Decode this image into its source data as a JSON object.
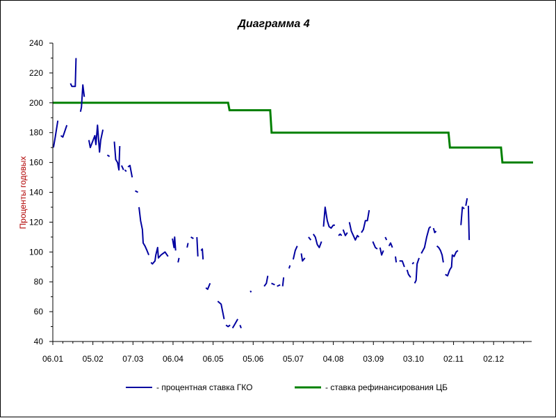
{
  "chart_data": {
    "type": "line",
    "title": "Диаграмма 4",
    "xlabel": "",
    "ylabel": "Проценты годовых",
    "ylim": [
      40,
      240
    ],
    "yticks": [
      40,
      60,
      80,
      100,
      120,
      140,
      160,
      180,
      200,
      220,
      240
    ],
    "x_ticks": [
      "06.01",
      "05.02",
      "07.03",
      "06.04",
      "06.05",
      "05.06",
      "05.07",
      "04.08",
      "03.09",
      "03.10",
      "02.11",
      "02.12"
    ],
    "x_index_range": [
      0,
      239
    ],
    "x_tick_indices": [
      0,
      20,
      40,
      60,
      80,
      100,
      120,
      140,
      160,
      180,
      200,
      220
    ],
    "grid": false,
    "legend_position": "bottom",
    "series": [
      {
        "name": "- процентная ставка ГКО",
        "color": "#0000a0",
        "segments": [
          [
            [
              0.3,
              170
            ],
            [
              1.2,
              177
            ],
            [
              2.5,
              188
            ]
          ],
          [
            [
              4,
              178
            ],
            [
              5,
              177
            ],
            [
              7,
              185
            ]
          ],
          [
            [
              8.8,
              213
            ],
            [
              9.5,
              211
            ],
            [
              11.2,
              211
            ],
            [
              11.6,
              230
            ]
          ],
          [
            [
              13.8,
              194
            ],
            [
              14.3,
              197
            ],
            [
              15,
              212
            ],
            [
              15.7,
              204
            ]
          ],
          [
            [
              18,
              175
            ],
            [
              18.7,
              170
            ],
            [
              21,
              178
            ],
            [
              21.5,
              172
            ],
            [
              22.3,
              185
            ],
            [
              23.3,
              167
            ],
            [
              23.9,
              175
            ],
            [
              25,
              182
            ]
          ],
          [
            [
              27.2,
              165
            ],
            [
              28.3,
              164
            ]
          ],
          [
            [
              30.7,
              174
            ],
            [
              31.4,
              162
            ],
            [
              32.3,
              160
            ],
            [
              33,
              155
            ],
            [
              33.4,
              171
            ]
          ],
          [
            [
              34.3,
              158
            ],
            [
              35.3,
              155
            ]
          ],
          [
            [
              35.9,
              155
            ],
            [
              36.7,
              154
            ]
          ],
          [
            [
              37.5,
              157
            ],
            [
              38.5,
              158
            ],
            [
              39.6,
              150
            ]
          ],
          [
            [
              41.1,
              141
            ],
            [
              42.5,
              140
            ]
          ],
          [
            [
              43,
              130
            ],
            [
              43.8,
              121
            ],
            [
              44.7,
              115
            ],
            [
              45.1,
              106
            ],
            [
              46,
              104
            ],
            [
              47,
              101
            ],
            [
              47.9,
              98
            ]
          ],
          [
            [
              49,
              93
            ],
            [
              49.7,
              92
            ],
            [
              51,
              94
            ],
            [
              51.4,
              98
            ],
            [
              52.3,
              103
            ],
            [
              52.7,
              96
            ],
            [
              54,
              98
            ],
            [
              55,
              99
            ],
            [
              56,
              100
            ],
            [
              57.5,
              97
            ]
          ],
          [
            [
              59.7,
              109
            ],
            [
              60.5,
              103
            ],
            [
              60.8,
              110
            ],
            [
              61.3,
              101
            ]
          ],
          [
            [
              62.5,
              93
            ],
            [
              63,
              96
            ]
          ],
          [
            [
              67,
              103
            ],
            [
              67.5,
              106
            ]
          ],
          [
            [
              68.9,
              110
            ],
            [
              70.2,
              109
            ]
          ],
          [
            [
              71.9,
              110
            ],
            [
              72.4,
              97
            ]
          ],
          [
            [
              74,
              101
            ],
            [
              74.6,
              102
            ],
            [
              75,
              95
            ]
          ],
          [
            [
              76.4,
              76
            ],
            [
              77.3,
              75
            ],
            [
              78.5,
              79
            ]
          ],
          [
            [
              82.3,
              67
            ],
            [
              84,
              65
            ],
            [
              85.5,
              55
            ]
          ],
          [
            [
              86.4,
              51
            ],
            [
              87.5,
              50
            ],
            [
              88.5,
              51
            ]
          ],
          [
            [
              89.7,
              49
            ],
            [
              90.6,
              51
            ],
            [
              92.3,
              55
            ]
          ],
          [
            [
              93.4,
              51
            ],
            [
              94,
              49
            ]
          ],
          [
            [
              98.6,
              74
            ],
            [
              99,
              73
            ]
          ],
          [
            [
              105.5,
              77
            ],
            [
              106.6,
              79
            ],
            [
              107.3,
              84
            ]
          ],
          [
            [
              109.1,
              79
            ],
            [
              110.8,
              78
            ]
          ],
          [
            [
              111.9,
              77
            ],
            [
              113.5,
              78
            ]
          ],
          [
            [
              114.7,
              77
            ],
            [
              115.2,
              83
            ]
          ],
          [
            [
              117.9,
              89
            ],
            [
              118.4,
              91
            ]
          ],
          [
            [
              120,
              95
            ],
            [
              121,
              101
            ],
            [
              122,
              104
            ]
          ],
          [
            [
              124,
              99
            ],
            [
              124.6,
              94
            ],
            [
              125.8,
              96
            ]
          ],
          [
            [
              127.6,
              110
            ],
            [
              128.8,
              108
            ]
          ],
          [
            [
              130,
              112
            ],
            [
              131,
              110
            ],
            [
              132,
              105
            ],
            [
              133,
              103
            ],
            [
              134.1,
              107
            ]
          ],
          [
            [
              135.1,
              117
            ],
            [
              135.9,
              130
            ],
            [
              137,
              121
            ],
            [
              137.9,
              117
            ],
            [
              138.9,
              116
            ],
            [
              140,
              118
            ],
            [
              140.8,
              118
            ]
          ],
          [
            [
              142.6,
              111
            ],
            [
              143.4,
              112
            ],
            [
              144.2,
              111
            ]
          ],
          [
            [
              144.9,
              115
            ],
            [
              146,
              111
            ],
            [
              147,
              113
            ]
          ],
          [
            [
              148,
              120
            ],
            [
              149,
              114
            ],
            [
              150,
              111
            ],
            [
              151,
              108
            ],
            [
              152,
              111
            ],
            [
              152.8,
              110
            ]
          ],
          [
            [
              154,
              113
            ],
            [
              155,
              115
            ],
            [
              156,
              121
            ],
            [
              157,
              121
            ],
            [
              157.9,
              128
            ]
          ],
          [
            [
              159.7,
              107
            ],
            [
              161,
              103
            ],
            [
              162,
              102
            ]
          ],
          [
            [
              163.3,
              103
            ],
            [
              164.1,
              98
            ],
            [
              165,
              101
            ]
          ],
          [
            [
              165.9,
              110
            ],
            [
              166.6,
              108
            ]
          ],
          [
            [
              167.8,
              104
            ],
            [
              168.6,
              106
            ],
            [
              169.5,
              103
            ]
          ],
          [
            [
              171,
              97
            ],
            [
              171.4,
              93
            ]
          ],
          [
            [
              173,
              94
            ],
            [
              174.4,
              94
            ],
            [
              175.5,
              90
            ]
          ],
          [
            [
              176.8,
              88
            ],
            [
              177.5,
              85
            ],
            [
              178.6,
              83
            ]
          ],
          [
            [
              179.4,
              92
            ],
            [
              180.2,
              93
            ]
          ],
          [
            [
              180.6,
              79
            ],
            [
              181.3,
              81
            ],
            [
              181.8,
              92
            ],
            [
              182.8,
              96
            ]
          ],
          [
            [
              183.9,
              99
            ],
            [
              185.5,
              103
            ],
            [
              186.6,
              110
            ],
            [
              187.8,
              116
            ],
            [
              188.6,
              117
            ]
          ],
          [
            [
              190,
              116
            ],
            [
              190.6,
              113
            ],
            [
              191.3,
              114
            ]
          ],
          [
            [
              191.7,
              104
            ],
            [
              192.6,
              103
            ],
            [
              193.5,
              101
            ],
            [
              194.3,
              98
            ],
            [
              194.9,
              93
            ]
          ],
          [
            [
              195.9,
              85
            ],
            [
              197,
              84
            ],
            [
              198.1,
              88
            ],
            [
              199,
              90
            ],
            [
              199.4,
              98
            ],
            [
              200.3,
              97
            ],
            [
              201.3,
              100
            ],
            [
              202.2,
              101
            ]
          ],
          [
            [
              203.7,
              118
            ],
            [
              204.4,
              130
            ],
            [
              205.4,
              129
            ]
          ],
          [
            [
              206.1,
              131
            ],
            [
              206.8,
              136
            ]
          ],
          [
            [
              207.4,
              131
            ],
            [
              207.8,
              108
            ]
          ]
        ]
      },
      {
        "name": "- ставка рефинансирования ЦБ",
        "color": "#008000",
        "steps": [
          [
            0,
            200
          ],
          [
            87.5,
            195
          ],
          [
            108.5,
            180
          ],
          [
            197.5,
            170
          ],
          [
            223.7,
            160
          ],
          [
            239,
            160
          ]
        ]
      }
    ]
  }
}
